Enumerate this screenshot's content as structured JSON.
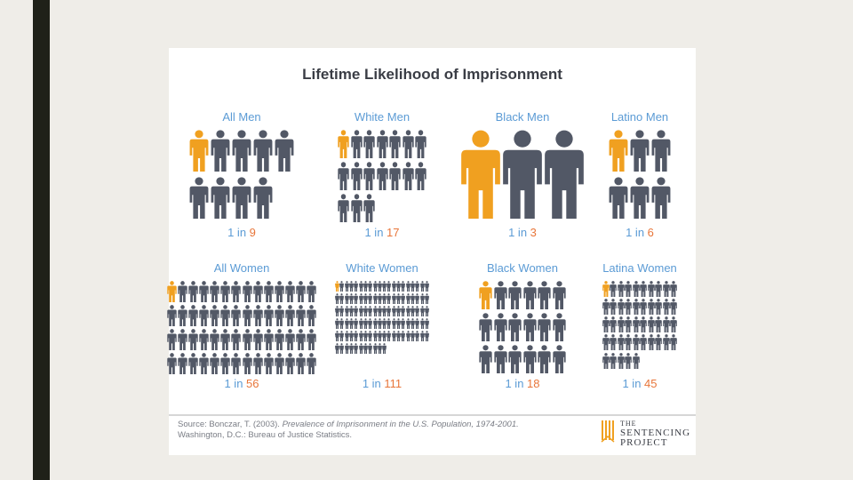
{
  "title": "Lifetime Likelihood of Imprisonment",
  "colors": {
    "highlight": "#f0a020",
    "person": "#525866",
    "label": "#5b9bd5",
    "number": "#e8763a"
  },
  "chart_data": {
    "type": "pictograph",
    "title": "Lifetime Likelihood of Imprisonment",
    "panels": [
      {
        "label": "All Men",
        "one_in": 9,
        "ratio_prefix": "1 in ",
        "ratio_value": "9"
      },
      {
        "label": "White Men",
        "one_in": 17,
        "ratio_prefix": "1 in ",
        "ratio_value": "17"
      },
      {
        "label": "Black Men",
        "one_in": 3,
        "ratio_prefix": "1 in ",
        "ratio_value": "3"
      },
      {
        "label": "Latino Men",
        "one_in": 6,
        "ratio_prefix": "1 in ",
        "ratio_value": "6"
      },
      {
        "label": "All Women",
        "one_in": 56,
        "ratio_prefix": "1 in ",
        "ratio_value": "56"
      },
      {
        "label": "White Women",
        "one_in": 111,
        "ratio_prefix": "1 in ",
        "ratio_value": "111"
      },
      {
        "label": "Black Women",
        "one_in": 18,
        "ratio_prefix": "1 in ",
        "ratio_value": "18"
      },
      {
        "label": "Latina Women",
        "one_in": 45,
        "ratio_prefix": "1 in ",
        "ratio_value": "45"
      }
    ]
  },
  "source": {
    "prefix": "Source: Bonczar, T. (2003). ",
    "title": "Prevalence of Imprisonment in the U.S. Population, 1974-2001.",
    "line2": "Washington, D.C.: Bureau of Justice Statistics."
  },
  "logo": {
    "line1": "THE",
    "line2": "SENTENCING",
    "line3": "PROJECT"
  }
}
